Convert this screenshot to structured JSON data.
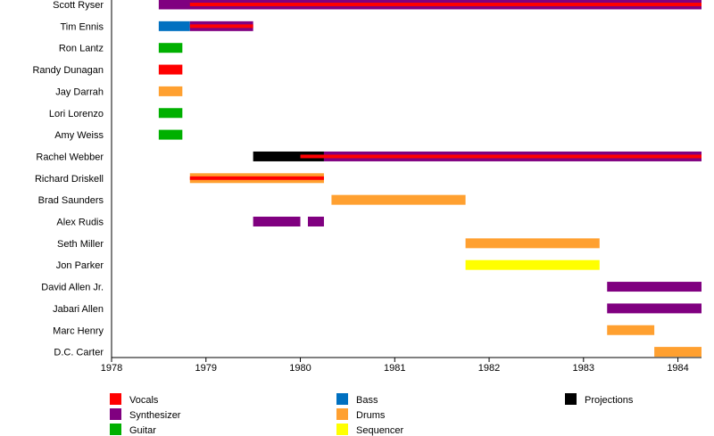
{
  "chart_data": {
    "type": "timeline",
    "xlim": [
      1978,
      1984.25
    ],
    "x_ticks": [
      "1978",
      "1979",
      "1980",
      "1981",
      "1982",
      "1983",
      "1984"
    ],
    "legend_placement": "bottom",
    "roles": [
      {
        "name": "Vocals",
        "color": "#ff0000"
      },
      {
        "name": "Synthesizer",
        "color": "#800080"
      },
      {
        "name": "Guitar",
        "color": "#00b000"
      },
      {
        "name": "Bass",
        "color": "#0070c0"
      },
      {
        "name": "Drums",
        "color": "#ffa030"
      },
      {
        "name": "Sequencer",
        "color": "#ffff00"
      },
      {
        "name": "Projections",
        "color": "#000000"
      }
    ],
    "members": [
      {
        "name": "Scott Ryser",
        "bars": [
          {
            "role": "Synthesizer",
            "start": 1978.5,
            "end": 1984.25
          },
          {
            "role": "Vocals",
            "start": 1978.83,
            "end": 1984.25,
            "inner": true
          }
        ]
      },
      {
        "name": "Tim Ennis",
        "bars": [
          {
            "role": "Bass",
            "start": 1978.5,
            "end": 1978.83
          },
          {
            "role": "Synthesizer",
            "start": 1978.83,
            "end": 1979.5
          },
          {
            "role": "Vocals",
            "start": 1978.83,
            "end": 1979.5,
            "inner": true
          }
        ]
      },
      {
        "name": "Ron Lantz",
        "bars": [
          {
            "role": "Guitar",
            "start": 1978.5,
            "end": 1978.75
          }
        ]
      },
      {
        "name": "Randy Dunagan",
        "bars": [
          {
            "role": "Vocals",
            "start": 1978.5,
            "end": 1978.75
          }
        ]
      },
      {
        "name": "Jay Darrah",
        "bars": [
          {
            "role": "Drums",
            "start": 1978.5,
            "end": 1978.75
          }
        ]
      },
      {
        "name": "Lori Lorenzo",
        "bars": [
          {
            "role": "Guitar",
            "start": 1978.5,
            "end": 1978.75
          }
        ]
      },
      {
        "name": "Amy Weiss",
        "bars": [
          {
            "role": "Guitar",
            "start": 1978.5,
            "end": 1978.75
          }
        ]
      },
      {
        "name": "Rachel Webber",
        "bars": [
          {
            "role": "Projections",
            "start": 1979.5,
            "end": 1980.25
          },
          {
            "role": "Synthesizer",
            "start": 1980.25,
            "end": 1984.25
          },
          {
            "role": "Vocals",
            "start": 1980.0,
            "end": 1984.25,
            "inner": true
          }
        ]
      },
      {
        "name": "Richard Driskell",
        "bars": [
          {
            "role": "Drums",
            "start": 1978.83,
            "end": 1980.25
          },
          {
            "role": "Vocals",
            "start": 1978.83,
            "end": 1980.25,
            "inner": true
          }
        ]
      },
      {
        "name": "Brad Saunders",
        "bars": [
          {
            "role": "Drums",
            "start": 1980.33,
            "end": 1981.75
          }
        ]
      },
      {
        "name": "Alex Rudis",
        "bars": [
          {
            "role": "Synthesizer",
            "start": 1979.5,
            "end": 1980.0
          },
          {
            "role": "Synthesizer",
            "start": 1980.08,
            "end": 1980.25
          }
        ]
      },
      {
        "name": "Seth Miller",
        "bars": [
          {
            "role": "Drums",
            "start": 1981.75,
            "end": 1983.17
          }
        ]
      },
      {
        "name": "Jon Parker",
        "bars": [
          {
            "role": "Sequencer",
            "start": 1981.75,
            "end": 1983.17
          }
        ]
      },
      {
        "name": "David Allen Jr.",
        "bars": [
          {
            "role": "Synthesizer",
            "start": 1983.25,
            "end": 1984.25
          }
        ]
      },
      {
        "name": "Jabari Allen",
        "bars": [
          {
            "role": "Synthesizer",
            "start": 1983.25,
            "end": 1984.25
          }
        ]
      },
      {
        "name": "Marc Henry",
        "bars": [
          {
            "role": "Drums",
            "start": 1983.25,
            "end": 1983.75
          }
        ]
      },
      {
        "name": "D.C. Carter",
        "bars": [
          {
            "role": "Drums",
            "start": 1983.75,
            "end": 1984.25
          }
        ]
      }
    ]
  }
}
